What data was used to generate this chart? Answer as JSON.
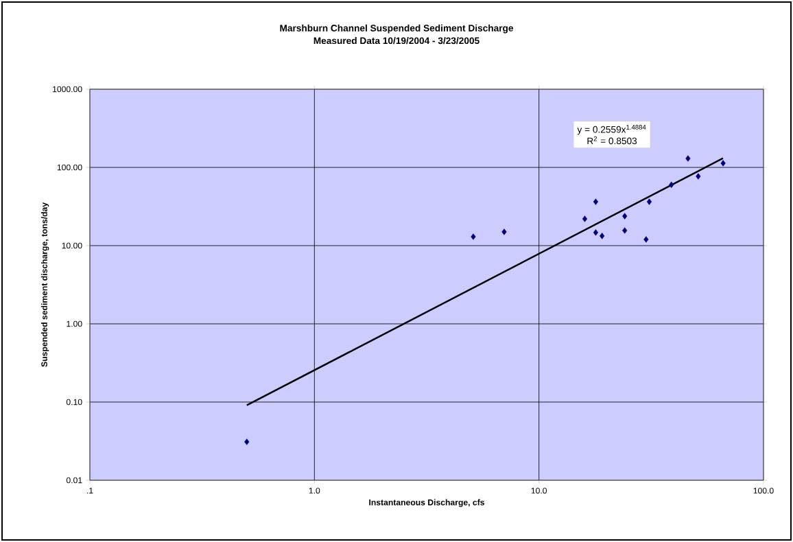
{
  "chart_data": {
    "type": "scatter",
    "title": "Marshburn Channel Suspended Sediment Discharge",
    "subtitle": "Measured Data 10/19/2004 - 3/23/2005",
    "xlabel": "Instantaneous Discharge, cfs",
    "ylabel": "Suspended sediment discharge, tons/day",
    "log": "xy",
    "grid": true,
    "marker": "diamond",
    "xlim": [
      0.1,
      100
    ],
    "ylim": [
      0.01,
      1000
    ],
    "xticks": [
      {
        "value": 0.1,
        "label": ".1"
      },
      {
        "value": 1,
        "label": "1.0"
      },
      {
        "value": 10,
        "label": "10.0"
      },
      {
        "value": 100,
        "label": "100.0"
      }
    ],
    "yticks": [
      {
        "value": 0.01,
        "label": "0.01"
      },
      {
        "value": 0.1,
        "label": "0.10"
      },
      {
        "value": 1,
        "label": "1.00"
      },
      {
        "value": 10,
        "label": "10.00"
      },
      {
        "value": 100,
        "label": "100.00"
      },
      {
        "value": 1000,
        "label": "1000.00"
      }
    ],
    "series": [
      {
        "color": "#000080",
        "x": [
          0.5,
          5.1,
          7.0,
          16.0,
          17.9,
          17.9,
          19.1,
          24.1,
          24.1,
          30.0,
          31.0,
          38.9,
          46.1,
          51.2,
          66.1
        ],
        "values": [
          0.031,
          13.0,
          15.0,
          22.0,
          36.4,
          14.7,
          13.3,
          23.8,
          15.6,
          12.0,
          36.4,
          60.0,
          130.0,
          76.9,
          113.0
        ]
      },
      {
        "type": "line",
        "color": "#000000",
        "marker": "none",
        "line_style": "solid",
        "x": [
          0.5,
          66
        ],
        "values": [
          0.091,
          130.8
        ]
      }
    ],
    "annotations": [
      "y = 0.2559x$^{1.4884}$",
      "R$^{2}$ = 0.8503"
    ]
  }
}
